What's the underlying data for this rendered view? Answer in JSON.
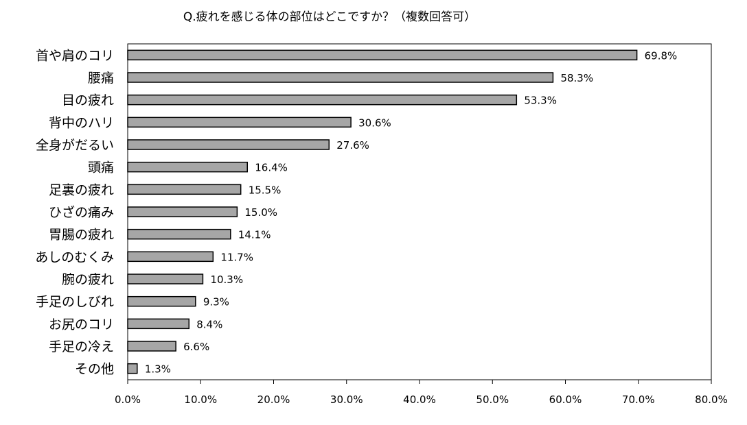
{
  "chart_data": {
    "type": "bar",
    "orientation": "horizontal",
    "title": "Q.疲れを感じる体の部位はどこですか？（複数回答可）",
    "categories": [
      "首や肩のコリ",
      "腰痛",
      "目の疲れ",
      "背中のハリ",
      "全身がだるい",
      "頭痛",
      "足裏の疲れ",
      "ひざの痛み",
      "胃腸の疲れ",
      "あしのむくみ",
      "腕の疲れ",
      "手足のしびれ",
      "お尻のコリ",
      "手足の冷え",
      "その他"
    ],
    "values": [
      69.8,
      58.3,
      53.3,
      30.6,
      27.6,
      16.4,
      15.5,
      15.0,
      14.1,
      11.7,
      10.3,
      9.3,
      8.4,
      6.6,
      1.3
    ],
    "value_labels": [
      "69.8%",
      "58.3%",
      "53.3%",
      "30.6%",
      "27.6%",
      "16.4%",
      "15.5%",
      "15.0%",
      "14.1%",
      "11.7%",
      "10.3%",
      "9.3%",
      "8.4%",
      "6.6%",
      "1.3%"
    ],
    "xlim": [
      0,
      80
    ],
    "xticks": [
      0,
      10,
      20,
      30,
      40,
      50,
      60,
      70,
      80
    ],
    "xtick_labels": [
      "0.0%",
      "10.0%",
      "20.0%",
      "30.0%",
      "40.0%",
      "50.0%",
      "60.0%",
      "70.0%",
      "80.0%"
    ],
    "xlabel": "",
    "ylabel": "",
    "grid": false,
    "legend": "none",
    "bar_color": "#a6a6a6",
    "bar_edge_color": "#000000"
  }
}
